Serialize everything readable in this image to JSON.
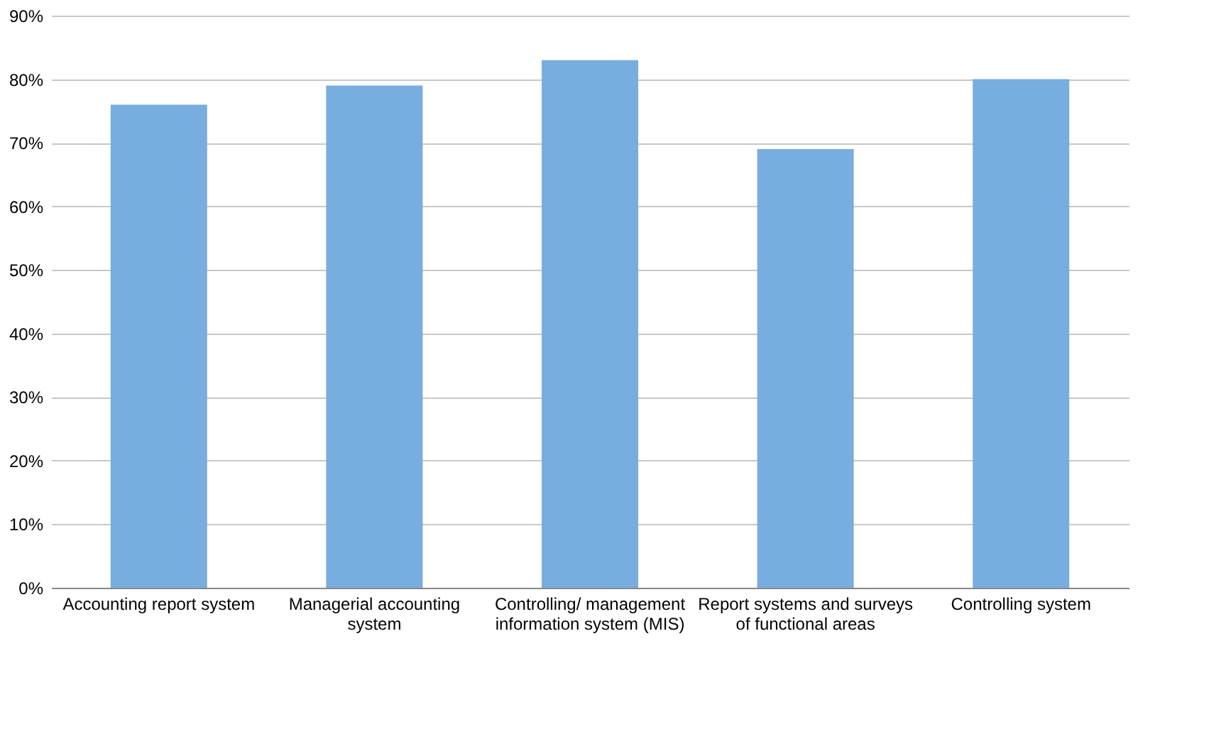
{
  "chart_data": {
    "type": "bar",
    "categories": [
      "Accounting report system",
      "Managerial accounting system",
      "Controlling/ management information system (MIS)",
      "Report systems and surveys of functional areas",
      "Controlling system"
    ],
    "values": [
      76,
      79,
      83,
      69,
      80
    ],
    "color": "#78addf",
    "ylim": [
      0,
      90
    ],
    "yticks": [
      {
        "value": 0,
        "label": "0%"
      },
      {
        "value": 10,
        "label": "10%"
      },
      {
        "value": 20,
        "label": "20%"
      },
      {
        "value": 30,
        "label": "30%"
      },
      {
        "value": 40,
        "label": "40%"
      },
      {
        "value": 50,
        "label": "50%"
      },
      {
        "value": 60,
        "label": "60%"
      },
      {
        "value": 70,
        "label": "70%"
      },
      {
        "value": 80,
        "label": "80%"
      },
      {
        "value": 90,
        "label": "90%"
      }
    ],
    "grid": "y"
  }
}
